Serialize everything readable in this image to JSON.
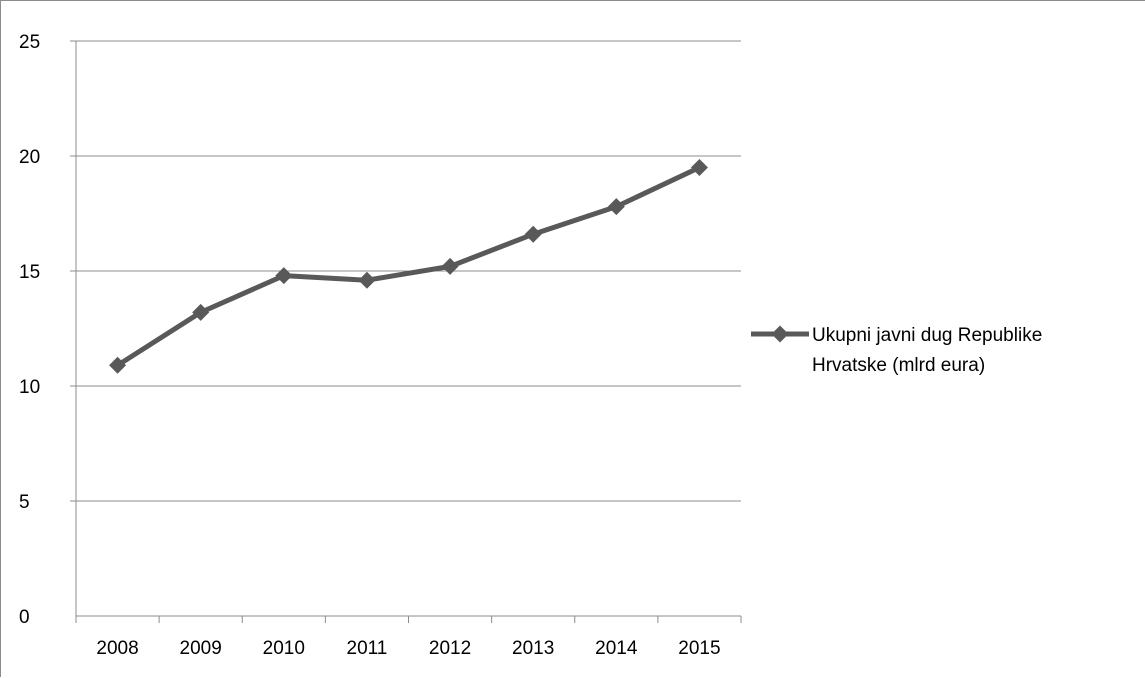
{
  "chart_data": {
    "type": "line",
    "title": "",
    "xlabel": "",
    "ylabel": "",
    "categories": [
      "2008",
      "2009",
      "2010",
      "2011",
      "2012",
      "2013",
      "2014",
      "2015"
    ],
    "series": [
      {
        "name": "Ukupni javni dug Republike Hrvatske (mlrd eura)",
        "name_lines": [
          "Ukupni javni dug Republike",
          "Hrvatske (mlrd eura)"
        ],
        "values": [
          10.9,
          13.2,
          14.8,
          14.6,
          15.2,
          16.6,
          17.8,
          19.5
        ],
        "color": "#595959",
        "marker": "diamond"
      }
    ],
    "ylim": [
      0,
      25
    ],
    "yticks": [
      0,
      5,
      10,
      15,
      20,
      25
    ],
    "grid": "horizontal",
    "legend_position": "right"
  }
}
